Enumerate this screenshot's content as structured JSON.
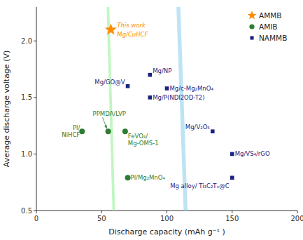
{
  "chart_data": {
    "type": "scatter",
    "xlabel": "Discharge capacity (mAh g⁻¹ )",
    "ylabel": "Average discharge voltage (V)",
    "xlim": [
      0,
      200
    ],
    "ylim": [
      0.5,
      2.3
    ],
    "xticks": [
      0,
      50,
      100,
      150,
      200
    ],
    "yticks": [
      0.5,
      {
        "value": 1.0,
        "label": "1.0"
      },
      1.5,
      {
        "value": 2.0,
        "label": "2.0"
      }
    ],
    "legend": "upper right",
    "series": [
      {
        "name": "AMMB",
        "color": "#FF8C00",
        "marker": "star",
        "x": [
          57
        ],
        "values": [
          2.1
        ],
        "labels": [
          "This work\nMg/CuHCF"
        ]
      },
      {
        "name": "AMIB",
        "color": "#2E7D32",
        "marker": "circle",
        "x": [
          35,
          55,
          68,
          70
        ],
        "values": [
          1.2,
          1.2,
          1.2,
          0.79
        ],
        "labels": [
          "Pl/\nNiHCF",
          "PPMDA/LVP",
          "FeVO₄/\nMg-OMS-1",
          "Pl/Mg₂MnO₄"
        ]
      },
      {
        "name": "NAMMB",
        "color": "#1a237e",
        "marker": "square",
        "x": [
          70,
          87,
          100,
          87,
          135,
          150,
          150
        ],
        "values": [
          1.6,
          1.7,
          1.58,
          1.5,
          1.2,
          1.0,
          0.79
        ],
        "labels": [
          "Mg/GO@V",
          "Mg/NP",
          "Mg/c-Mg₂MnO₄",
          "Mg/P(NDI2OD-T2)",
          "Mg/V₂O₅",
          "Mg/VS₄/rGO",
          "Mg alloy/ Ti₃C₂Tₓ@C"
        ]
      }
    ],
    "regions": [
      {
        "color": "#90EE90",
        "cx": 58,
        "cy": 1.02,
        "xr": 32,
        "yr": 0.38,
        "angle": -22
      },
      {
        "color": "#87CEEB",
        "cx": 112,
        "cy": 1.26,
        "xr": 55,
        "yr": 0.46,
        "angle": -18
      }
    ]
  }
}
